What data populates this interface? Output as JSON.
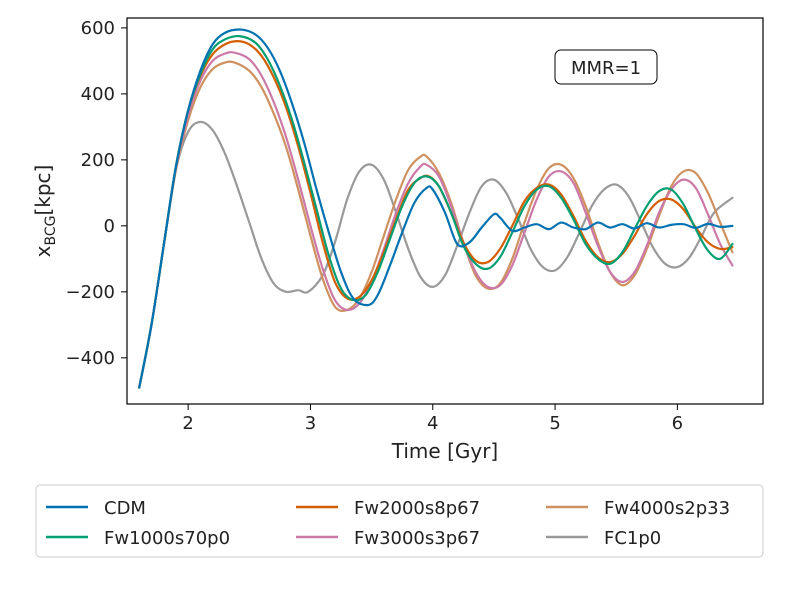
{
  "chart_data": {
    "type": "line",
    "title": "",
    "annotation": "MMR=1",
    "xlabel": "Time [Gyr]",
    "ylabel_main": "x",
    "ylabel_sub": "BCG",
    "ylabel_unit": "[kpc]",
    "xlim": [
      1.5,
      6.7
    ],
    "ylim": [
      -540,
      630
    ],
    "xticks": [
      2,
      3,
      4,
      5,
      6
    ],
    "yticks": [
      -400,
      -200,
      0,
      200,
      400,
      600
    ],
    "xtick_labels": [
      "2",
      "3",
      "4",
      "5",
      "6"
    ],
    "ytick_labels": [
      "−400",
      "−200",
      "0",
      "200",
      "400",
      "600"
    ],
    "legend_position": "below",
    "series": [
      {
        "name": "CDM",
        "color": "#0072b2",
        "x": [
          1.6,
          1.7,
          1.8,
          1.9,
          2.0,
          2.1,
          2.2,
          2.3,
          2.43,
          2.55,
          2.65,
          2.75,
          2.85,
          2.95,
          3.05,
          3.15,
          3.25,
          3.35,
          3.47,
          3.55,
          3.65,
          3.75,
          3.85,
          3.95,
          4.0,
          4.1,
          4.2,
          4.3,
          4.4,
          4.5,
          4.55,
          4.65,
          4.75,
          4.85,
          4.95,
          5.05,
          5.15,
          5.25,
          5.35,
          5.45,
          5.55,
          5.65,
          5.75,
          5.85,
          5.95,
          6.05,
          6.15,
          6.25,
          6.35,
          6.45
        ],
        "y": [
          -490,
          -300,
          -60,
          180,
          350,
          470,
          550,
          585,
          595,
          580,
          540,
          470,
          370,
          250,
          110,
          -20,
          -140,
          -220,
          -240,
          -210,
          -120,
          -20,
          70,
          115,
          110,
          40,
          -55,
          -50,
          -5,
          35,
          25,
          -15,
          -5,
          5,
          -10,
          10,
          -5,
          -10,
          10,
          -5,
          5,
          -8,
          8,
          -5,
          3,
          5,
          -6,
          6,
          -3,
          0
        ]
      },
      {
        "name": "Fw1000s70p0",
        "color": "#009e73",
        "x": [
          1.6,
          1.7,
          1.8,
          1.9,
          2.0,
          2.1,
          2.2,
          2.3,
          2.42,
          2.55,
          2.65,
          2.75,
          2.85,
          2.95,
          3.05,
          3.15,
          3.25,
          3.35,
          3.45,
          3.55,
          3.65,
          3.75,
          3.85,
          3.95,
          4.05,
          4.15,
          4.25,
          4.35,
          4.45,
          4.55,
          4.65,
          4.75,
          4.85,
          4.95,
          5.05,
          5.15,
          5.25,
          5.35,
          5.45,
          5.55,
          5.65,
          5.75,
          5.85,
          5.95,
          6.05,
          6.15,
          6.25,
          6.35,
          6.45
        ],
        "y": [
          -490,
          -300,
          -60,
          180,
          350,
          460,
          535,
          565,
          575,
          555,
          505,
          425,
          320,
          190,
          50,
          -90,
          -190,
          -225,
          -210,
          -140,
          -40,
          60,
          130,
          150,
          120,
          40,
          -60,
          -115,
          -130,
          -95,
          -20,
          60,
          110,
          120,
          85,
          20,
          -55,
          -100,
          -115,
          -80,
          -10,
          60,
          105,
          110,
          65,
          -10,
          -75,
          -100,
          -55
        ]
      },
      {
        "name": "Fw2000s8p67",
        "color": "#d55e00",
        "x": [
          1.6,
          1.7,
          1.8,
          1.9,
          2.0,
          2.1,
          2.2,
          2.3,
          2.4,
          2.5,
          2.6,
          2.7,
          2.8,
          2.9,
          3.0,
          3.1,
          3.2,
          3.3,
          3.4,
          3.5,
          3.6,
          3.7,
          3.8,
          3.9,
          3.97,
          4.05,
          4.15,
          4.25,
          4.35,
          4.45,
          4.55,
          4.65,
          4.75,
          4.85,
          4.95,
          5.05,
          5.15,
          5.25,
          5.35,
          5.45,
          5.55,
          5.65,
          5.75,
          5.85,
          5.95,
          6.05,
          6.15,
          6.25,
          6.35,
          6.45
        ],
        "y": [
          -490,
          -300,
          -60,
          180,
          350,
          455,
          520,
          550,
          560,
          550,
          515,
          450,
          360,
          240,
          100,
          -50,
          -170,
          -220,
          -215,
          -165,
          -80,
          20,
          110,
          145,
          150,
          120,
          40,
          -50,
          -105,
          -110,
          -70,
          0,
          75,
          115,
          125,
          95,
          30,
          -45,
          -95,
          -110,
          -85,
          -30,
          35,
          75,
          80,
          50,
          -5,
          -50,
          -70,
          -65
        ]
      },
      {
        "name": "Fw3000s3p67",
        "color": "#cc79a7",
        "x": [
          1.6,
          1.7,
          1.8,
          1.9,
          2.0,
          2.1,
          2.2,
          2.3,
          2.38,
          2.5,
          2.6,
          2.7,
          2.8,
          2.9,
          3.0,
          3.1,
          3.2,
          3.3,
          3.4,
          3.5,
          3.6,
          3.7,
          3.8,
          3.9,
          3.95,
          4.05,
          4.15,
          4.25,
          4.35,
          4.45,
          4.55,
          4.65,
          4.75,
          4.85,
          4.95,
          5.05,
          5.15,
          5.25,
          5.35,
          5.45,
          5.55,
          5.65,
          5.75,
          5.85,
          5.95,
          6.05,
          6.15,
          6.25,
          6.35,
          6.45
        ],
        "y": [
          -490,
          -300,
          -60,
          175,
          335,
          440,
          500,
          522,
          525,
          505,
          455,
          375,
          270,
          140,
          0,
          -130,
          -225,
          -255,
          -235,
          -170,
          -70,
          40,
          130,
          180,
          185,
          150,
          60,
          -50,
          -140,
          -185,
          -180,
          -120,
          -20,
          80,
          150,
          165,
          130,
          40,
          -60,
          -140,
          -170,
          -140,
          -60,
          40,
          110,
          140,
          115,
          35,
          -55,
          -120
        ]
      },
      {
        "name": "Fw4000s2p33",
        "color": "#cf9160",
        "x": [
          1.6,
          1.7,
          1.8,
          1.9,
          2.0,
          2.1,
          2.2,
          2.3,
          2.38,
          2.5,
          2.6,
          2.7,
          2.8,
          2.9,
          3.0,
          3.1,
          3.2,
          3.3,
          3.4,
          3.5,
          3.6,
          3.7,
          3.8,
          3.9,
          3.95,
          4.05,
          4.15,
          4.25,
          4.35,
          4.45,
          4.55,
          4.65,
          4.75,
          4.85,
          4.95,
          5.05,
          5.15,
          5.25,
          5.35,
          5.45,
          5.55,
          5.65,
          5.75,
          5.85,
          5.95,
          6.05,
          6.15,
          6.25,
          6.35,
          6.45
        ],
        "y": [
          -490,
          -300,
          -60,
          170,
          320,
          420,
          475,
          495,
          495,
          470,
          420,
          340,
          240,
          110,
          -30,
          -160,
          -245,
          -255,
          -220,
          -140,
          -30,
          80,
          170,
          210,
          210,
          160,
          70,
          -50,
          -150,
          -190,
          -175,
          -100,
          10,
          110,
          175,
          185,
          145,
          60,
          -50,
          -140,
          -180,
          -150,
          -70,
          30,
          120,
          165,
          160,
          100,
          10,
          -80
        ]
      },
      {
        "name": "FC1p0",
        "color": "#999999",
        "x": [
          1.6,
          1.7,
          1.8,
          1.9,
          2.0,
          2.1,
          2.2,
          2.3,
          2.4,
          2.5,
          2.6,
          2.7,
          2.8,
          2.9,
          2.98,
          3.1,
          3.2,
          3.3,
          3.4,
          3.5,
          3.6,
          3.7,
          3.8,
          3.9,
          4.0,
          4.1,
          4.2,
          4.3,
          4.4,
          4.5,
          4.6,
          4.7,
          4.8,
          4.9,
          5.0,
          5.1,
          5.2,
          5.3,
          5.4,
          5.5,
          5.6,
          5.7,
          5.8,
          5.9,
          6.0,
          6.1,
          6.2,
          6.3,
          6.45
        ],
        "y": [
          -490,
          -300,
          -60,
          170,
          285,
          315,
          290,
          220,
          120,
          10,
          -100,
          -175,
          -200,
          -195,
          -200,
          -150,
          -50,
          80,
          165,
          185,
          140,
          40,
          -70,
          -155,
          -185,
          -150,
          -60,
          40,
          120,
          140,
          100,
          20,
          -70,
          -125,
          -135,
          -95,
          -20,
          60,
          110,
          125,
          90,
          15,
          -65,
          -115,
          -125,
          -95,
          -30,
          40,
          85
        ]
      }
    ]
  }
}
